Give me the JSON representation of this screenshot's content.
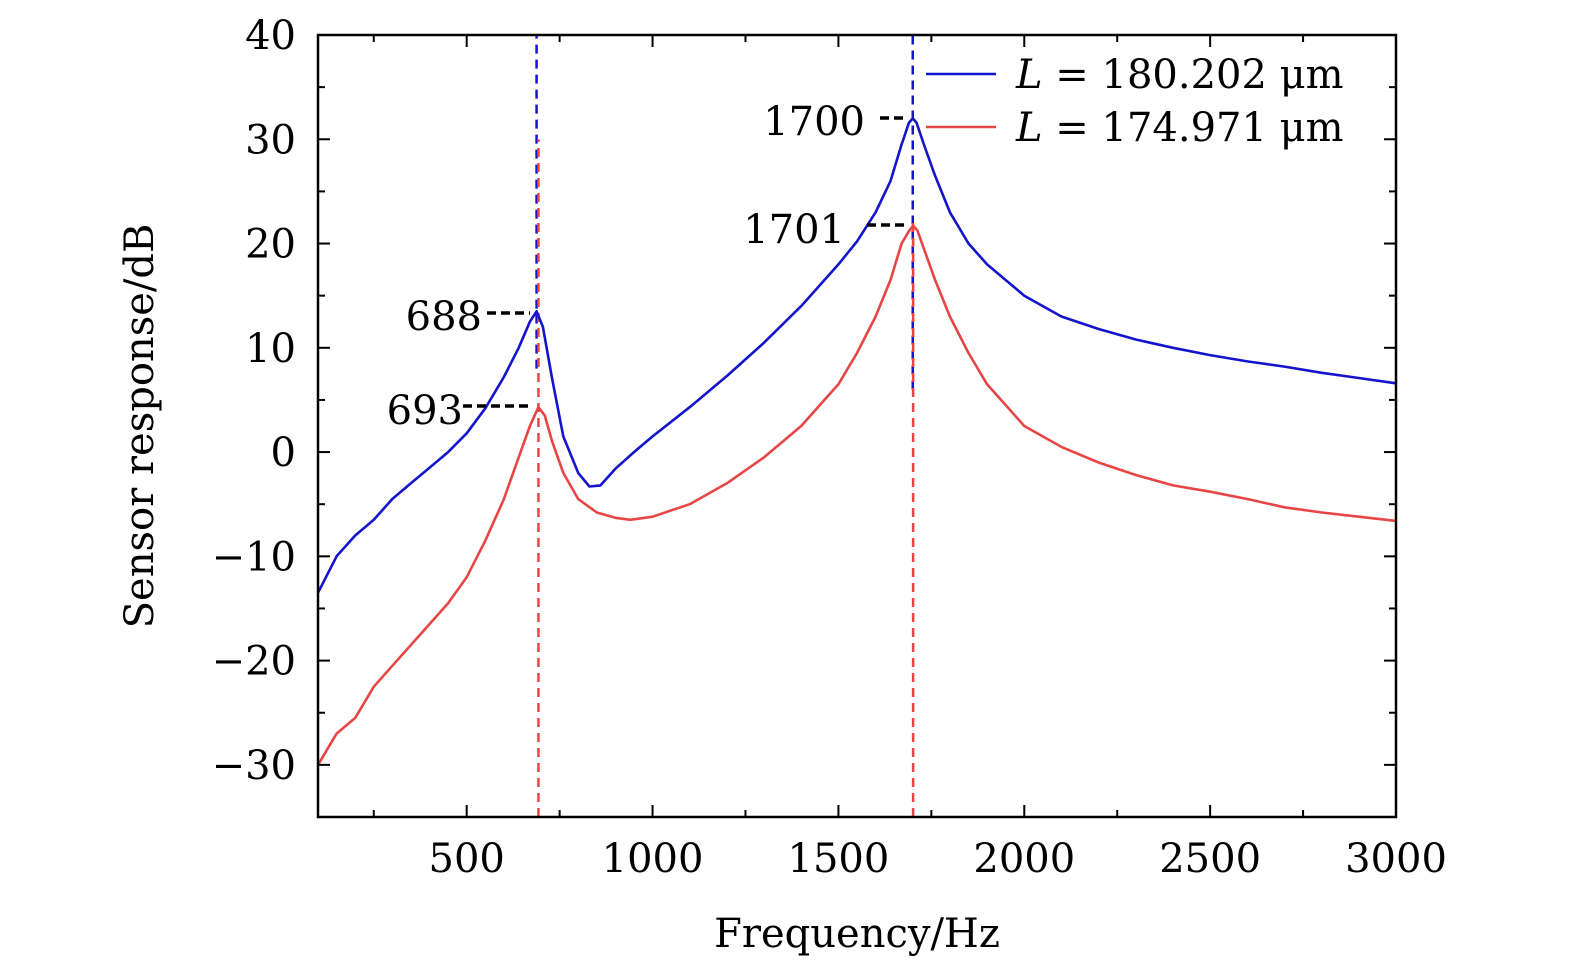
{
  "chart_data": {
    "type": "line",
    "title": "",
    "xlabel": "Frequency/Hz",
    "ylabel": "Sensor response/dB",
    "xlim": [
      100,
      3000
    ],
    "ylim": [
      -35,
      40
    ],
    "x_ticks": [
      500,
      1000,
      1500,
      2000,
      2500,
      3000
    ],
    "x_tick_labels": [
      "500",
      "1000",
      "1500",
      "2000",
      "2500",
      "3000"
    ],
    "y_ticks": [
      -30,
      -20,
      -10,
      0,
      10,
      20,
      30,
      40
    ],
    "y_tick_labels": [
      "−30",
      "−20",
      "−10",
      "0",
      "10",
      "20",
      "30",
      "40"
    ],
    "legend_position": "top-right",
    "grid": false,
    "series": [
      {
        "name": "L = 180.202 μm",
        "legend_var": "L",
        "legend_value": "= 180.202 μm",
        "color": "#1414cc",
        "x": [
          100,
          150,
          200,
          250,
          300,
          350,
          400,
          450,
          500,
          550,
          600,
          640,
          670,
          688,
          705,
          730,
          760,
          800,
          830,
          860,
          880,
          900,
          950,
          1000,
          1100,
          1200,
          1300,
          1400,
          1500,
          1550,
          1600,
          1640,
          1670,
          1690,
          1700,
          1710,
          1730,
          1760,
          1800,
          1850,
          1900,
          2000,
          2100,
          2200,
          2300,
          2400,
          2500,
          2600,
          2700,
          2800,
          2900,
          3000
        ],
        "y": [
          -13.5,
          -10,
          -8,
          -6.5,
          -4.5,
          -3,
          -1.5,
          0,
          1.8,
          4.2,
          7.2,
          10,
          12.5,
          13.5,
          12,
          7,
          1.5,
          -2,
          -3.3,
          -3.2,
          -2.4,
          -1.6,
          0,
          1.5,
          4.3,
          7.3,
          10.5,
          14,
          18,
          20.2,
          23,
          26,
          29.5,
          31.6,
          32,
          31.6,
          29.5,
          26.5,
          23,
          20,
          18,
          15,
          13,
          11.8,
          10.8,
          10,
          9.3,
          8.7,
          8.2,
          7.6,
          7.1,
          6.6
        ]
      },
      {
        "name": "L = 174.971 μm",
        "legend_var": "L",
        "legend_value": "= 174.971 μm",
        "color": "#e84646",
        "x": [
          100,
          150,
          200,
          250,
          300,
          350,
          400,
          450,
          500,
          550,
          600,
          640,
          670,
          693,
          710,
          730,
          760,
          800,
          850,
          900,
          940,
          1000,
          1100,
          1200,
          1300,
          1400,
          1500,
          1550,
          1600,
          1640,
          1670,
          1690,
          1701,
          1712,
          1730,
          1760,
          1800,
          1850,
          1900,
          2000,
          2100,
          2200,
          2300,
          2400,
          2500,
          2600,
          2700,
          2800,
          2900,
          3000
        ],
        "y": [
          -30,
          -27,
          -25.5,
          -22.5,
          -20.5,
          -18.5,
          -16.5,
          -14.5,
          -12,
          -8.5,
          -4.5,
          -0.5,
          2.5,
          4.3,
          3.5,
          1,
          -2,
          -4.5,
          -5.8,
          -6.3,
          -6.5,
          -6.2,
          -5,
          -3,
          -0.5,
          2.5,
          6.5,
          9.5,
          13,
          16.5,
          20,
          21.2,
          21.7,
          21.3,
          19.5,
          16.5,
          13,
          9.5,
          6.5,
          2.5,
          0.5,
          -1,
          -2.2,
          -3.2,
          -3.8,
          -4.5,
          -5.3,
          -5.8,
          -6.2,
          -6.6
        ]
      }
    ],
    "reference_lines": [
      {
        "x": 688,
        "color": "#1414cc",
        "style": "dashed",
        "y_from": 8,
        "y_to": 40
      },
      {
        "x": 693,
        "color": "#e84646",
        "style": "dashed",
        "y_from": -35,
        "y_to": 30
      },
      {
        "x": 1700,
        "color": "#1414cc",
        "style": "dashed",
        "y_from": 6,
        "y_to": 40
      },
      {
        "x": 1701,
        "color": "#e84646",
        "style": "dashed",
        "y_from": -35,
        "y_to": 22
      }
    ],
    "annotations": [
      {
        "text": "688",
        "x": 688,
        "y": 13.5
      },
      {
        "text": "693",
        "x": 693,
        "y": 4.3
      },
      {
        "text": "1700",
        "x": 1700,
        "y": 32
      },
      {
        "text": "1701",
        "x": 1701,
        "y": 21.7
      }
    ]
  }
}
